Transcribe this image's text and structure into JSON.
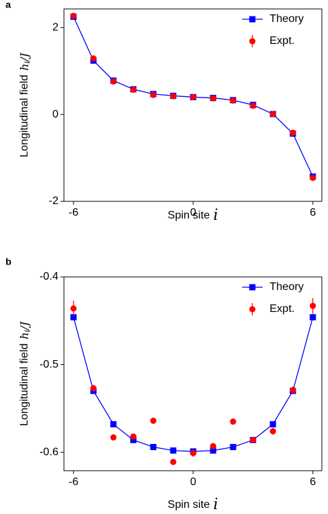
{
  "chart_data": [
    {
      "type": "line",
      "panel": "a",
      "ylabel": "Longitudinal field",
      "ylabel_symbol": "h",
      "ylabel_subscript": "i",
      "ylabel_suffix": "/J",
      "xlabel": "Spin site",
      "xlabel_symbol": "i",
      "x": [
        -6,
        -5,
        -4,
        -3,
        -2,
        -1,
        0,
        1,
        2,
        3,
        4,
        5,
        6
      ],
      "xlim": [
        -6.48,
        6.45
      ],
      "xticks": [
        -6,
        0,
        6
      ],
      "ylim": [
        -2,
        2.43
      ],
      "yticks": [
        -2,
        0,
        2
      ],
      "legend": "upper right",
      "series": [
        {
          "name": "Theory",
          "color": "#0000ff",
          "style": "line",
          "marker": "square",
          "values": [
            2.25,
            1.24,
            0.78,
            0.58,
            0.47,
            0.43,
            0.4,
            0.38,
            0.33,
            0.22,
            0.01,
            -0.44,
            -1.43
          ]
        },
        {
          "name": "Expt.",
          "color": "#ff0000",
          "style": "points",
          "marker": "circle",
          "values": [
            2.27,
            1.29,
            0.76,
            0.57,
            0.45,
            0.42,
            0.4,
            0.37,
            0.32,
            0.2,
            0.01,
            -0.42,
            -1.46
          ],
          "errors": [
            0.04,
            0.03,
            0.03,
            0.03,
            0.03,
            0.03,
            0.03,
            0.03,
            0.03,
            0.03,
            0.03,
            0.03,
            0.05
          ]
        }
      ]
    },
    {
      "type": "line",
      "panel": "b",
      "ylabel": "Longitudinal field",
      "ylabel_symbol": "h",
      "ylabel_subscript": "i",
      "ylabel_suffix": "/J",
      "xlabel": "Spin site",
      "xlabel_symbol": "i",
      "x": [
        -6,
        -5,
        -4,
        -3,
        -2,
        -1,
        0,
        1,
        2,
        3,
        4,
        5,
        6
      ],
      "xlim": [
        -6.48,
        6.45
      ],
      "xticks": [
        -6,
        0,
        6
      ],
      "ylim": [
        -0.621,
        -0.4
      ],
      "yticks": [
        -0.6,
        -0.5,
        -0.4
      ],
      "legend": "upper right",
      "series": [
        {
          "name": "Theory",
          "color": "#0000ff",
          "style": "line",
          "marker": "square",
          "values": [
            -0.446,
            -0.53,
            -0.568,
            -0.586,
            -0.594,
            -0.598,
            -0.599,
            -0.598,
            -0.594,
            -0.586,
            -0.568,
            -0.53,
            -0.446
          ]
        },
        {
          "name": "Expt.",
          "color": "#ff0000",
          "style": "points",
          "marker": "circle",
          "values": [
            -0.436,
            -0.527,
            -0.583,
            -0.582,
            -0.564,
            -0.611,
            -0.601,
            -0.593,
            -0.565,
            -0.586,
            -0.576,
            -0.529,
            -0.433
          ],
          "errors": [
            0.009,
            0.004,
            0.003,
            0.003,
            0.003,
            0.003,
            0.004,
            0.003,
            0.003,
            0.003,
            0.004,
            0.004,
            0.009
          ]
        }
      ]
    }
  ]
}
